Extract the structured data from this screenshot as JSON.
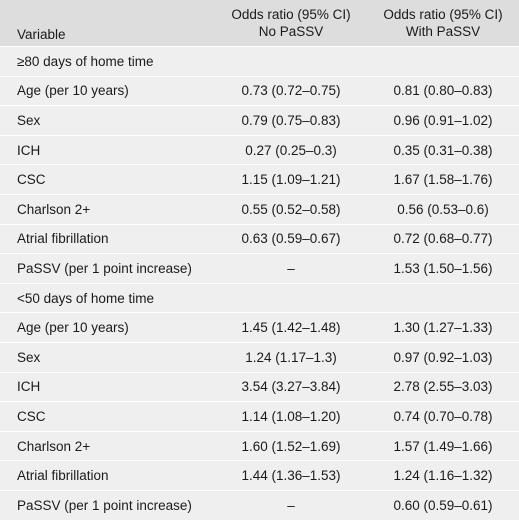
{
  "table": {
    "header": {
      "variable": "Variable",
      "col1_line1": "Odds ratio (95% CI)",
      "col1_line2": "No PaSSV",
      "col2_line1": "Odds ratio (95% CI)",
      "col2_line2": "With PaSSV"
    },
    "sections": [
      {
        "title": "≥80 days of home time",
        "rows": [
          {
            "variable": "Age (per 10 years)",
            "no_passv": "0.73 (0.72–0.75)",
            "with_passv": "0.81 (0.80–0.83)"
          },
          {
            "variable": "Sex",
            "no_passv": "0.79 (0.75–0.83)",
            "with_passv": "0.96 (0.91–1.02)"
          },
          {
            "variable": "ICH",
            "no_passv": "0.27 (0.25–0.3)",
            "with_passv": "0.35 (0.31–0.38)"
          },
          {
            "variable": "CSC",
            "no_passv": "1.15 (1.09–1.21)",
            "with_passv": "1.67 (1.58–1.76)"
          },
          {
            "variable": "Charlson 2+",
            "no_passv": "0.55 (0.52–0.58)",
            "with_passv": "0.56 (0.53–0.6)"
          },
          {
            "variable": "Atrial fibrillation",
            "no_passv": "0.63 (0.59–0.67)",
            "with_passv": "0.72 (0.68–0.77)"
          },
          {
            "variable": "PaSSV (per 1 point increase)",
            "no_passv": "–",
            "with_passv": "1.53 (1.50–1.56)"
          }
        ]
      },
      {
        "title": "<50 days of home time",
        "rows": [
          {
            "variable": "Age (per 10 years)",
            "no_passv": "1.45 (1.42–1.48)",
            "with_passv": "1.30 (1.27–1.33)"
          },
          {
            "variable": "Sex",
            "no_passv": "1.24 (1.17–1.3)",
            "with_passv": "0.97 (0.92–1.03)"
          },
          {
            "variable": "ICH",
            "no_passv": "3.54 (3.27–3.84)",
            "with_passv": "2.78 (2.55–3.03)"
          },
          {
            "variable": "CSC",
            "no_passv": "1.14 (1.08–1.20)",
            "with_passv": "0.74 (0.70–0.78)"
          },
          {
            "variable": "Charlson 2+",
            "no_passv": "1.60 (1.52–1.69)",
            "with_passv": "1.57 (1.49–1.66)"
          },
          {
            "variable": "Atrial fibrillation",
            "no_passv": "1.44 (1.36–1.53)",
            "with_passv": "1.24 (1.16–1.32)"
          },
          {
            "variable": "PaSSV (per 1 point increase)",
            "no_passv": "–",
            "with_passv": "0.60 (0.59–0.61)"
          }
        ]
      }
    ]
  }
}
